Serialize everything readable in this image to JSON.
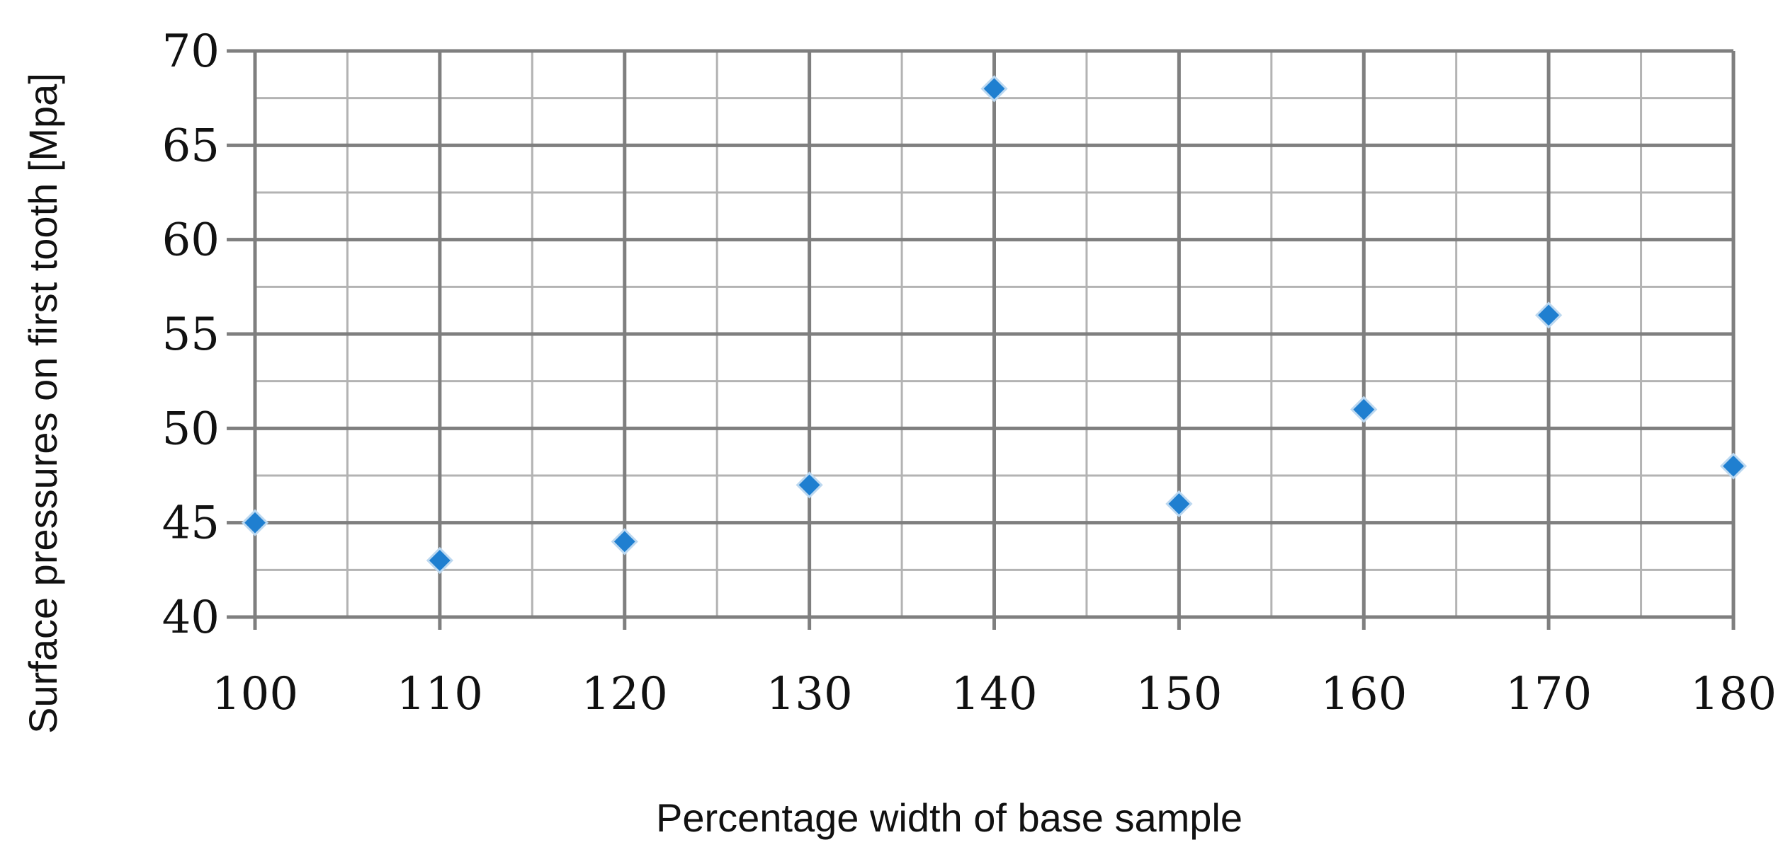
{
  "chart_data": {
    "type": "scatter",
    "title": "",
    "xlabel": "Percentage width of base sample",
    "ylabel": "Surface pressures on first tooth [Mpa]",
    "xlim": [
      100,
      180
    ],
    "ylim": [
      40,
      70
    ],
    "x_major_step": 10,
    "x_minor_step": 5,
    "y_major_step": 5,
    "y_minor_step": 2.5,
    "grid": true,
    "legend": "none",
    "x_ticks": [
      "100",
      "110",
      "120",
      "130",
      "140",
      "150",
      "160",
      "170",
      "180"
    ],
    "y_ticks": [
      "40",
      "45",
      "50",
      "55",
      "60",
      "65",
      "70"
    ],
    "series": [
      {
        "color": "#1f7fd0",
        "marker": "diamond",
        "points": [
          {
            "x": 100,
            "y": 45
          },
          {
            "x": 110,
            "y": 43
          },
          {
            "x": 120,
            "y": 44
          },
          {
            "x": 130,
            "y": 47
          },
          {
            "x": 140,
            "y": 68
          },
          {
            "x": 150,
            "y": 46
          },
          {
            "x": 160,
            "y": 51
          },
          {
            "x": 170,
            "y": 56
          },
          {
            "x": 180,
            "y": 48
          }
        ]
      }
    ]
  }
}
